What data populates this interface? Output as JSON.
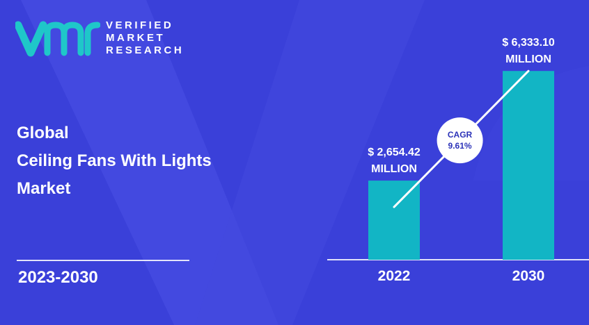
{
  "brand": {
    "line1": "VERIFIED",
    "line2": "MARKET",
    "line3": "RESEARCH"
  },
  "title": {
    "line1": "Global",
    "line2": "Ceiling Fans With Lights",
    "line3": "Market"
  },
  "period": "2023-2030",
  "colors": {
    "background": "#3a40d9",
    "bar": "#12b5c5",
    "logo_teal": "#1fc7c9",
    "text": "#ffffff",
    "cagr_text": "#2b32b8"
  },
  "chart_data": {
    "type": "bar",
    "categories": [
      "2022",
      "2030"
    ],
    "values": [
      2654.42,
      6333.1
    ],
    "value_labels": [
      [
        "$ 2,654.42",
        "MILLION"
      ],
      [
        "$ 6,333.10",
        "MILLION"
      ]
    ],
    "annotation": {
      "line1": "CAGR",
      "line2": "9.61%"
    },
    "ylim": [
      0,
      7200
    ]
  }
}
